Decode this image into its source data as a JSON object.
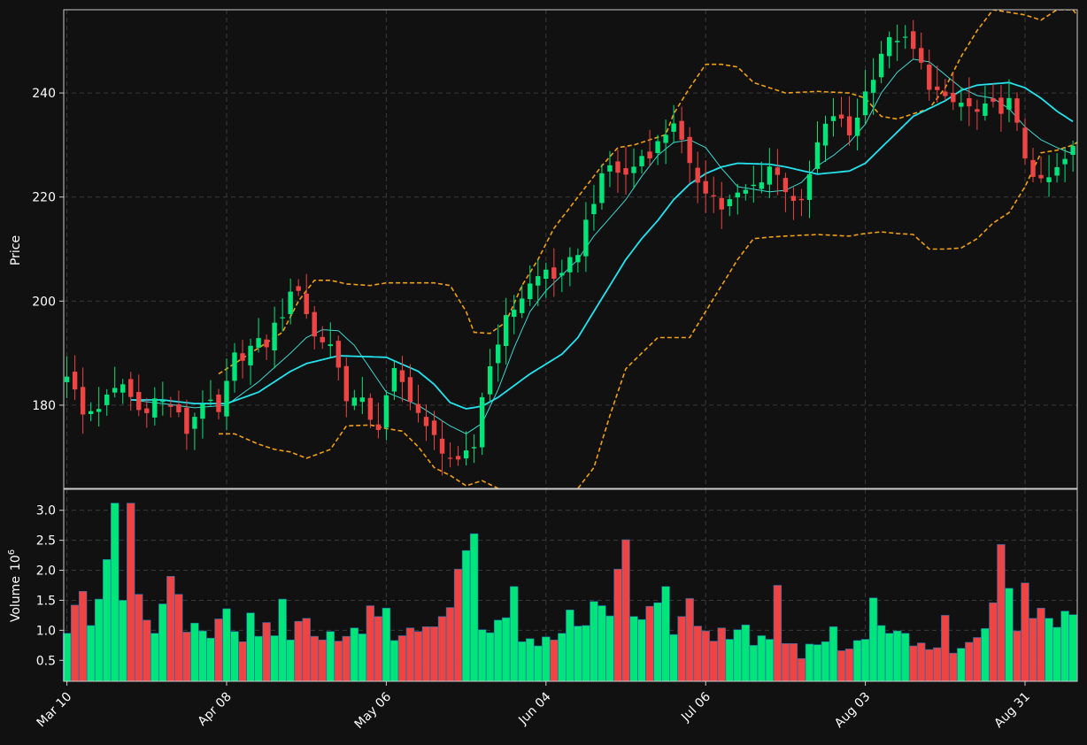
{
  "chart_data": {
    "type": "candlestick",
    "price_panel": {
      "ylabel": "Price",
      "ylim": [
        164,
        256
      ],
      "yticks": [
        180,
        200,
        220,
        240
      ]
    },
    "volume_panel": {
      "ylabel": "Volume",
      "ylabel_exp": "6",
      "ylim": [
        0.15,
        3.35
      ],
      "yticks": [
        0.5,
        1.0,
        1.5,
        2.0,
        2.5,
        3.0
      ],
      "ytick_labels": [
        "0.5",
        "1.0",
        "1.5",
        "2.0",
        "2.5",
        "3.0"
      ]
    },
    "x_ticks": [
      {
        "index": 0,
        "label": "Mar 10"
      },
      {
        "index": 20,
        "label": "Apr 08"
      },
      {
        "index": 40,
        "label": "May 06"
      },
      {
        "index": 60,
        "label": "Jun 04"
      },
      {
        "index": 80,
        "label": "Jul 06"
      },
      {
        "index": 100,
        "label": "Aug 03"
      },
      {
        "index": 120,
        "label": "Aug 31"
      }
    ],
    "n_days": 127,
    "colors": {
      "up": "#00e57a",
      "down": "#ef4444",
      "background": "#111111",
      "grid": "#3a3a3a",
      "ma_slow": "#22e4f0",
      "ma_fast": "#3fd8d0",
      "bollinger": "#f0a012",
      "text": "#ffffff",
      "axis": "#cccccc"
    },
    "anchors": {
      "close": [
        [
          0,
          186.5
        ],
        [
          2,
          178
        ],
        [
          5,
          181
        ],
        [
          7,
          184
        ],
        [
          9,
          179
        ],
        [
          11,
          181
        ],
        [
          13,
          180
        ],
        [
          15,
          175
        ],
        [
          17,
          181
        ],
        [
          19,
          178
        ],
        [
          21,
          189
        ],
        [
          23,
          191
        ],
        [
          25,
          192
        ],
        [
          27,
          198
        ],
        [
          29,
          203
        ],
        [
          31,
          193
        ],
        [
          33,
          192
        ],
        [
          35,
          182
        ],
        [
          37,
          180
        ],
        [
          39,
          176
        ],
        [
          41,
          186
        ],
        [
          43,
          182
        ],
        [
          45,
          175
        ],
        [
          47,
          172
        ],
        [
          49,
          168
        ],
        [
          51,
          172
        ],
        [
          52,
          182
        ],
        [
          54,
          193
        ],
        [
          56,
          199
        ],
        [
          58,
          203
        ],
        [
          60,
          206
        ],
        [
          62,
          204
        ],
        [
          64,
          210
        ],
        [
          66,
          220
        ],
        [
          68,
          226
        ],
        [
          70,
          224
        ],
        [
          72,
          228
        ],
        [
          74,
          230
        ],
        [
          76,
          235
        ],
        [
          78,
          225
        ],
        [
          80,
          222
        ],
        [
          82,
          218
        ],
        [
          84,
          220
        ],
        [
          86,
          222
        ],
        [
          88,
          226
        ],
        [
          90,
          222
        ],
        [
          92,
          218
        ],
        [
          94,
          230
        ],
        [
          96,
          236
        ],
        [
          98,
          232
        ],
        [
          100,
          240
        ],
        [
          102,
          248
        ],
        [
          104,
          251
        ],
        [
          106,
          248
        ],
        [
          108,
          242
        ],
        [
          110,
          238
        ],
        [
          112,
          238
        ],
        [
          114,
          236
        ],
        [
          116,
          237
        ],
        [
          118,
          238
        ],
        [
          120,
          228
        ],
        [
          122,
          222
        ],
        [
          124,
          225
        ],
        [
          126,
          229
        ]
      ],
      "volume": [
        0.95,
        1.42,
        1.65,
        1.08,
        1.52,
        2.18,
        3.12,
        1.5,
        3.12,
        1.6,
        1.17,
        0.95,
        1.44,
        1.9,
        1.6,
        0.97,
        1.12,
        0.99,
        0.87,
        1.19,
        1.36,
        0.98,
        0.81,
        1.29,
        0.9,
        1.13,
        0.91,
        1.52,
        0.84,
        1.15,
        1.2,
        0.9,
        0.84,
        0.98,
        0.82,
        0.9,
        1.04,
        0.94,
        1.41,
        1.23,
        1.37,
        0.83,
        0.91,
        1.04,
        0.98,
        1.06,
        1.06,
        1.23,
        1.38,
        2.02,
        2.33,
        2.61,
        1.01,
        0.96,
        1.17,
        1.21,
        1.73,
        0.81,
        0.86,
        0.74,
        0.89,
        0.84,
        0.95,
        1.34,
        1.07,
        1.08,
        1.48,
        1.41,
        1.24,
        2.02,
        2.51,
        1.23,
        1.18,
        1.4,
        1.46,
        1.73,
        0.93,
        1.23,
        1.53,
        1.07,
        0.99,
        0.82,
        1.04,
        0.85,
        1.01,
        1.09,
        0.75,
        0.91,
        0.85,
        1.75,
        0.78,
        0.78,
        0.53,
        0.77,
        0.76,
        0.81,
        1.06,
        0.66,
        0.69,
        0.83,
        0.85,
        1.54,
        1.08,
        0.95,
        0.99,
        0.95,
        0.74,
        0.79,
        0.68,
        0.71,
        1.25,
        0.62,
        0.7,
        0.8,
        0.88,
        1.03,
        1.46,
        2.43,
        1.7,
        0.99,
        1.79,
        1.2,
        1.37,
        1.2,
        1.05,
        1.32,
        1.26
      ],
      "ma_slow": [
        [
          8,
          181
        ],
        [
          12,
          181
        ],
        [
          16,
          180.3
        ],
        [
          20,
          180.3
        ],
        [
          24,
          182.5
        ],
        [
          28,
          186.5
        ],
        [
          30,
          188
        ],
        [
          34,
          189.5
        ],
        [
          40,
          189.2
        ],
        [
          44,
          186.5
        ],
        [
          46,
          184
        ],
        [
          48,
          180.5
        ],
        [
          50,
          179.3
        ],
        [
          52,
          179.8
        ],
        [
          54,
          181.5
        ],
        [
          58,
          186
        ],
        [
          62,
          189.8
        ],
        [
          64,
          193
        ],
        [
          66,
          198
        ],
        [
          68,
          203
        ],
        [
          70,
          208
        ],
        [
          72,
          212
        ],
        [
          74,
          215.5
        ],
        [
          76,
          219.5
        ],
        [
          78,
          222.5
        ],
        [
          80,
          224.5
        ],
        [
          82,
          225.8
        ],
        [
          84,
          226.5
        ],
        [
          88,
          226.3
        ],
        [
          90,
          225.8
        ],
        [
          94,
          224.4
        ],
        [
          98,
          225
        ],
        [
          100,
          226.5
        ],
        [
          102,
          229.5
        ],
        [
          104,
          232.5
        ],
        [
          106,
          235.5
        ],
        [
          108,
          237
        ],
        [
          110,
          238.5
        ],
        [
          112,
          240.5
        ],
        [
          114,
          241.5
        ],
        [
          118,
          242
        ],
        [
          120,
          241
        ],
        [
          122,
          239
        ],
        [
          124,
          236.5
        ],
        [
          126,
          234.5
        ]
      ],
      "ma_fast": [
        [
          8,
          181
        ],
        [
          12,
          180.3
        ],
        [
          16,
          179.5
        ],
        [
          20,
          180
        ],
        [
          24,
          184.5
        ],
        [
          28,
          190
        ],
        [
          30,
          193
        ],
        [
          32,
          194.5
        ],
        [
          34,
          194.3
        ],
        [
          36,
          191.5
        ],
        [
          38,
          187
        ],
        [
          40,
          182.5
        ],
        [
          44,
          180
        ],
        [
          46,
          178
        ],
        [
          48,
          176
        ],
        [
          50,
          174.5
        ],
        [
          52,
          176.5
        ],
        [
          54,
          183
        ],
        [
          56,
          191
        ],
        [
          58,
          198
        ],
        [
          60,
          202
        ],
        [
          62,
          205
        ],
        [
          64,
          208
        ],
        [
          66,
          212.5
        ],
        [
          68,
          216
        ],
        [
          70,
          219.5
        ],
        [
          72,
          224
        ],
        [
          74,
          228
        ],
        [
          76,
          230.5
        ],
        [
          78,
          231
        ],
        [
          80,
          229.5
        ],
        [
          82,
          225.5
        ],
        [
          84,
          222
        ],
        [
          86,
          221.5
        ],
        [
          88,
          221
        ],
        [
          90,
          221.3
        ],
        [
          92,
          222.8
        ],
        [
          94,
          226
        ],
        [
          96,
          228
        ],
        [
          98,
          230.5
        ],
        [
          100,
          234
        ],
        [
          102,
          240
        ],
        [
          104,
          244
        ],
        [
          106,
          246.5
        ],
        [
          108,
          246
        ],
        [
          110,
          243.5
        ],
        [
          112,
          241
        ],
        [
          114,
          239.5
        ],
        [
          116,
          239
        ],
        [
          118,
          237
        ],
        [
          120,
          233.5
        ],
        [
          122,
          231
        ],
        [
          124,
          229.5
        ],
        [
          126,
          228.3
        ]
      ],
      "bb_upper": [
        [
          19,
          186
        ],
        [
          22,
          189
        ],
        [
          24,
          191
        ],
        [
          27,
          194
        ],
        [
          29,
          200
        ],
        [
          31,
          204
        ],
        [
          33,
          204
        ],
        [
          35,
          203.3
        ],
        [
          38,
          203
        ],
        [
          40,
          203.5
        ],
        [
          44,
          203.5
        ],
        [
          46,
          203.5
        ],
        [
          48,
          203
        ],
        [
          50,
          198
        ],
        [
          51,
          194
        ],
        [
          53,
          193.8
        ],
        [
          55,
          196
        ],
        [
          57,
          203
        ],
        [
          59,
          208
        ],
        [
          61,
          214
        ],
        [
          63,
          218
        ],
        [
          65,
          222
        ],
        [
          67,
          226
        ],
        [
          69,
          229.5
        ],
        [
          71,
          230
        ],
        [
          73,
          231
        ],
        [
          75,
          232
        ],
        [
          76,
          236
        ],
        [
          78,
          241
        ],
        [
          80,
          245.5
        ],
        [
          82,
          245.5
        ],
        [
          84,
          245
        ],
        [
          86,
          242
        ],
        [
          88,
          241
        ],
        [
          90,
          240
        ],
        [
          94,
          240.3
        ],
        [
          98,
          240
        ],
        [
          100,
          239
        ],
        [
          102,
          235.5
        ],
        [
          104,
          235
        ],
        [
          106,
          236
        ],
        [
          108,
          237
        ],
        [
          110,
          241
        ],
        [
          112,
          247
        ],
        [
          114,
          252
        ],
        [
          116,
          256
        ],
        [
          118,
          255.5
        ],
        [
          120,
          255
        ],
        [
          122,
          254
        ],
        [
          124,
          256
        ],
        [
          126,
          256
        ],
        [
          128,
          252
        ],
        [
          130,
          248.5
        ]
      ],
      "bb_lower": [
        [
          19,
          174.5
        ],
        [
          21,
          174.5
        ],
        [
          24,
          172.5
        ],
        [
          26,
          171.5
        ],
        [
          28,
          171
        ],
        [
          30,
          169.8
        ],
        [
          33,
          171.5
        ],
        [
          35,
          176
        ],
        [
          38,
          176.2
        ],
        [
          40,
          175.5
        ],
        [
          42,
          175
        ],
        [
          44,
          172
        ],
        [
          46,
          168
        ],
        [
          48,
          166.5
        ],
        [
          50,
          164.5
        ],
        [
          52,
          165.5
        ],
        [
          54,
          164
        ],
        [
          56,
          161
        ],
        [
          58,
          158
        ],
        [
          60,
          156
        ],
        [
          62,
          160
        ],
        [
          64,
          164
        ],
        [
          66,
          168
        ],
        [
          68,
          178
        ],
        [
          70,
          187
        ],
        [
          72,
          190
        ],
        [
          74,
          193
        ],
        [
          76,
          193
        ],
        [
          78,
          193
        ],
        [
          80,
          198
        ],
        [
          82,
          203
        ],
        [
          84,
          208
        ],
        [
          86,
          212
        ],
        [
          88,
          212.3
        ],
        [
          90,
          212.5
        ],
        [
          94,
          212.8
        ],
        [
          98,
          212.5
        ],
        [
          100,
          213
        ],
        [
          102,
          213.3
        ],
        [
          104,
          213
        ],
        [
          106,
          212.8
        ],
        [
          108,
          210
        ],
        [
          110,
          210
        ],
        [
          112,
          210.2
        ],
        [
          114,
          212
        ],
        [
          116,
          215
        ],
        [
          118,
          217
        ],
        [
          120,
          222
        ],
        [
          122,
          228.5
        ],
        [
          124,
          229
        ],
        [
          126,
          230
        ],
        [
          128,
          232
        ],
        [
          130,
          227
        ],
        [
          132,
          222
        ],
        [
          134,
          220
        ],
        [
          136,
          219.8
        ],
        [
          138,
          219.8
        ]
      ]
    }
  }
}
